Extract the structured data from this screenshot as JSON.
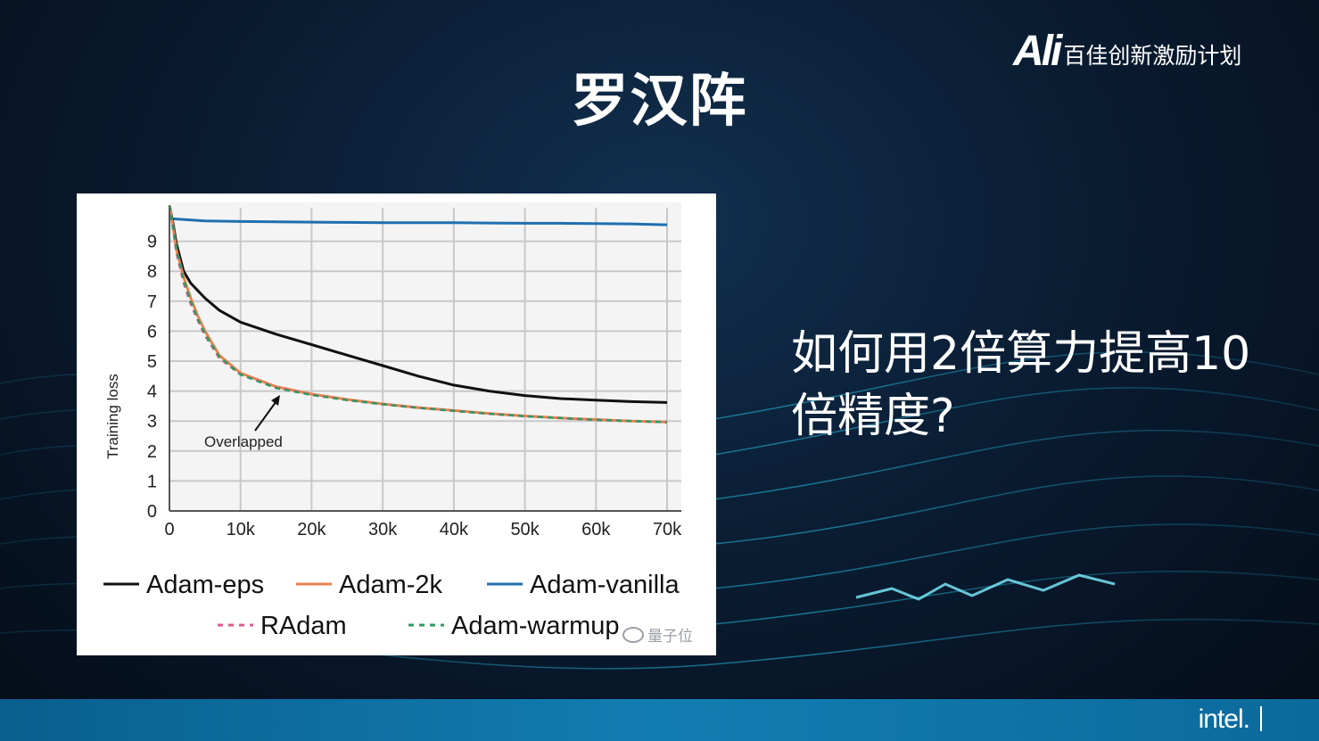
{
  "slide": {
    "title": "罗汉阵",
    "question": "如何用2倍算力提高10倍精度?"
  },
  "brand": {
    "logo_text": "Ali",
    "program_text": "百佳创新激励计划"
  },
  "footer": {
    "logo_text": "intel."
  },
  "watermark": {
    "text": "量子位"
  },
  "colors": {
    "adam_eps": "#111111",
    "adam_2k": "#e8814e",
    "adam_vanilla": "#1f6fb0",
    "radam": "#e05a8f",
    "adam_warmup": "#2e9a62"
  },
  "chart_data": {
    "type": "line",
    "title": "",
    "xlabel": "",
    "ylabel": "Training loss",
    "xlim": [
      0,
      70000
    ],
    "ylim": [
      0,
      10
    ],
    "x_ticks": [
      0,
      10000,
      20000,
      30000,
      40000,
      50000,
      60000,
      70000
    ],
    "x_tick_labels": [
      "0",
      "10k",
      "20k",
      "30k",
      "40k",
      "50k",
      "60k",
      "70k"
    ],
    "y_ticks": [
      0,
      1,
      2,
      3,
      4,
      5,
      6,
      7,
      8,
      9
    ],
    "y_tick_labels": [
      "0",
      "1",
      "2",
      "3",
      "4",
      "5",
      "6",
      "7",
      "8",
      "9"
    ],
    "grid": true,
    "legend_position": "bottom",
    "annotation": {
      "text": "Overlapped",
      "points_to": [
        14500,
        4.1
      ]
    },
    "series": [
      {
        "name": "Adam-eps",
        "color": "#111111",
        "dash": "solid",
        "x": [
          0,
          500,
          1000,
          2000,
          3000,
          5000,
          7000,
          10000,
          15000,
          20000,
          25000,
          30000,
          35000,
          40000,
          45000,
          50000,
          55000,
          60000,
          65000,
          70000
        ],
        "y": [
          10.2,
          9.6,
          8.9,
          8.0,
          7.6,
          7.1,
          6.7,
          6.3,
          5.9,
          5.55,
          5.2,
          4.85,
          4.5,
          4.2,
          4.0,
          3.85,
          3.75,
          3.7,
          3.65,
          3.62
        ]
      },
      {
        "name": "Adam-2k",
        "color": "#e8814e",
        "dash": "solid",
        "x": [
          0,
          500,
          1000,
          2000,
          3000,
          4000,
          5000,
          7000,
          10000,
          15000,
          20000,
          25000,
          30000,
          35000,
          40000,
          45000,
          50000,
          55000,
          60000,
          65000,
          70000
        ],
        "y": [
          10.2,
          9.5,
          8.7,
          7.8,
          7.1,
          6.5,
          6.0,
          5.2,
          4.6,
          4.15,
          3.9,
          3.72,
          3.57,
          3.45,
          3.35,
          3.25,
          3.17,
          3.1,
          3.05,
          3.0,
          2.97
        ]
      },
      {
        "name": "Adam-vanilla",
        "color": "#1f6fb0",
        "dash": "solid",
        "x": [
          500,
          5000,
          10000,
          15000,
          20000,
          25000,
          30000,
          35000,
          40000,
          45000,
          50000,
          55000,
          60000,
          65000,
          70000
        ],
        "y": [
          9.75,
          9.68,
          9.66,
          9.65,
          9.64,
          9.63,
          9.62,
          9.62,
          9.62,
          9.61,
          9.6,
          9.6,
          9.59,
          9.58,
          9.55
        ]
      },
      {
        "name": "RAdam",
        "color": "#e05a8f",
        "dash": "dashed",
        "x": [
          0,
          500,
          1000,
          2000,
          3000,
          4000,
          5000,
          7000,
          10000,
          15000,
          20000,
          25000,
          30000,
          35000,
          40000,
          45000,
          50000,
          55000,
          60000,
          65000,
          70000
        ],
        "y": [
          10.2,
          9.4,
          8.6,
          7.6,
          6.9,
          6.35,
          5.85,
          5.1,
          4.55,
          4.12,
          3.88,
          3.7,
          3.56,
          3.44,
          3.34,
          3.24,
          3.16,
          3.1,
          3.04,
          3.0,
          2.96
        ]
      },
      {
        "name": "Adam-warmup",
        "color": "#2e9a62",
        "dash": "dashed",
        "x": [
          0,
          500,
          1000,
          2000,
          3000,
          4000,
          5000,
          7000,
          10000,
          15000,
          20000,
          25000,
          30000,
          35000,
          40000,
          45000,
          50000,
          55000,
          60000,
          65000,
          70000
        ],
        "y": [
          10.2,
          9.5,
          8.7,
          7.7,
          7.0,
          6.4,
          5.9,
          5.15,
          4.55,
          4.1,
          3.87,
          3.7,
          3.56,
          3.44,
          3.34,
          3.24,
          3.16,
          3.1,
          3.04,
          3.0,
          2.96
        ]
      }
    ]
  }
}
